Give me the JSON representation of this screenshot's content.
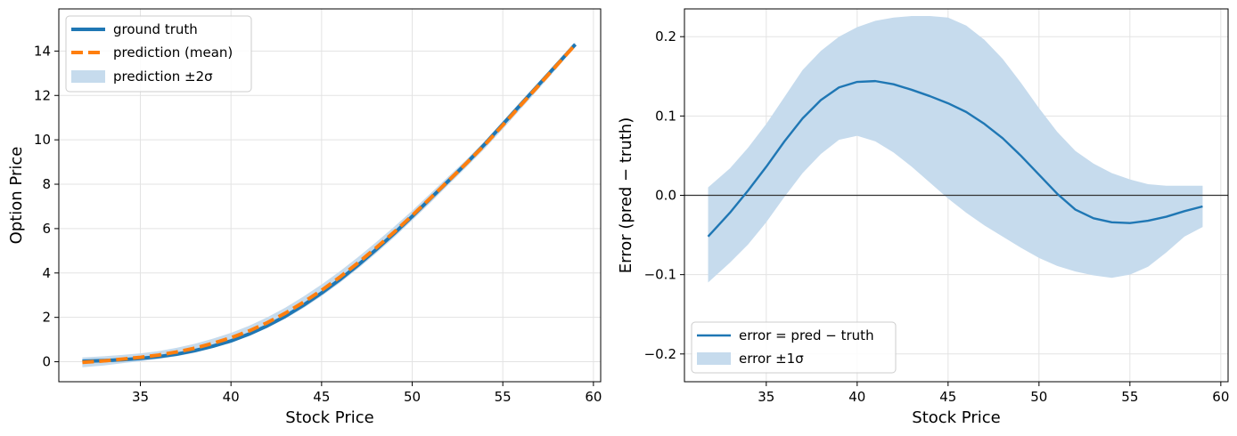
{
  "colors": {
    "truth": "#1f77b4",
    "prediction": "#ff7f0e",
    "band": "#c6dbed",
    "error": "#1f77b4",
    "zero_line": "#333333",
    "grid": "#e3e3e3"
  },
  "chart_data": [
    {
      "type": "line",
      "xlabel": "Stock Price",
      "ylabel": "Option Price",
      "xlim": [
        30.5,
        60.4
      ],
      "ylim": [
        -0.9,
        15.9
      ],
      "xticks": [
        35,
        40,
        45,
        50,
        55,
        60
      ],
      "yticks": [
        0,
        2,
        4,
        6,
        8,
        10,
        12,
        14
      ],
      "grid": true,
      "legend_position": "top-left",
      "legend": [
        "ground truth",
        "prediction (mean)",
        "prediction ±2σ"
      ],
      "x": [
        31.8,
        33,
        34,
        35,
        36,
        37,
        38,
        39,
        40,
        41,
        42,
        43,
        44,
        45,
        46,
        47,
        48,
        49,
        50,
        51,
        52,
        53,
        54,
        55,
        56,
        57,
        58,
        59
      ],
      "series": [
        {
          "name": "ground truth",
          "values": [
            0.02,
            0.05,
            0.09,
            0.15,
            0.23,
            0.34,
            0.5,
            0.7,
            0.94,
            1.25,
            1.62,
            2.05,
            2.55,
            3.1,
            3.7,
            4.35,
            5.05,
            5.78,
            6.55,
            7.35,
            8.15,
            8.95,
            9.8,
            10.7,
            11.6,
            12.5,
            13.4,
            14.3
          ]
        },
        {
          "name": "prediction (mean)",
          "values": [
            -0.03,
            0.04,
            0.12,
            0.2,
            0.3,
            0.44,
            0.61,
            0.83,
            1.08,
            1.39,
            1.76,
            2.19,
            2.68,
            3.22,
            3.81,
            4.45,
            5.13,
            5.84,
            6.59,
            7.37,
            8.16,
            8.95,
            9.77,
            10.66,
            11.57,
            12.47,
            13.38,
            14.29
          ]
        }
      ],
      "band": {
        "name": "prediction ±2σ",
        "lower": [
          -0.25,
          -0.17,
          -0.07,
          0.02,
          0.12,
          0.25,
          0.41,
          0.62,
          0.86,
          1.16,
          1.52,
          1.94,
          2.42,
          2.96,
          3.55,
          4.19,
          4.88,
          5.6,
          6.37,
          7.16,
          7.97,
          8.78,
          9.6,
          10.48,
          11.4,
          12.31,
          13.24,
          14.2
        ],
        "upper": [
          0.19,
          0.25,
          0.31,
          0.38,
          0.48,
          0.63,
          0.81,
          1.04,
          1.3,
          1.62,
          2.0,
          2.44,
          2.94,
          3.48,
          4.07,
          4.71,
          5.38,
          6.08,
          6.81,
          7.58,
          8.35,
          9.12,
          9.94,
          10.84,
          11.74,
          12.63,
          13.52,
          14.38
        ]
      }
    },
    {
      "type": "line",
      "xlabel": "Stock Price",
      "ylabel": "Error (pred − truth)",
      "xlim": [
        30.5,
        60.4
      ],
      "ylim": [
        -0.235,
        0.235
      ],
      "xticks": [
        35,
        40,
        45,
        50,
        55,
        60
      ],
      "yticks": [
        -0.2,
        -0.1,
        0.0,
        0.1,
        0.2
      ],
      "ytick_labels": [
        "−0.2",
        "−0.1",
        "0.0",
        "0.1",
        "0.2"
      ],
      "grid": true,
      "reference_line_y": 0,
      "legend_position": "bottom-left",
      "legend": [
        "error = pred − truth",
        "error ±1σ"
      ],
      "x": [
        31.8,
        33,
        34,
        35,
        36,
        37,
        38,
        39,
        40,
        41,
        42,
        43,
        44,
        45,
        46,
        47,
        48,
        49,
        50,
        51,
        52,
        53,
        54,
        55,
        56,
        57,
        58,
        59
      ],
      "series": [
        {
          "name": "error = pred − truth",
          "values": [
            -0.052,
            -0.022,
            0.006,
            0.036,
            0.068,
            0.097,
            0.12,
            0.136,
            0.143,
            0.144,
            0.14,
            0.133,
            0.125,
            0.116,
            0.105,
            0.09,
            0.072,
            0.05,
            0.026,
            0.002,
            -0.018,
            -0.029,
            -0.034,
            -0.035,
            -0.032,
            -0.027,
            -0.02,
            -0.014
          ]
        }
      ],
      "band": {
        "name": "error ±1σ",
        "lower": [
          -0.11,
          -0.085,
          -0.062,
          -0.034,
          -0.002,
          0.028,
          0.052,
          0.07,
          0.075,
          0.068,
          0.054,
          0.036,
          0.016,
          -0.004,
          -0.022,
          -0.038,
          -0.052,
          -0.066,
          -0.079,
          -0.089,
          -0.096,
          -0.101,
          -0.104,
          -0.1,
          -0.09,
          -0.072,
          -0.052,
          -0.04
        ],
        "upper": [
          0.01,
          0.034,
          0.06,
          0.09,
          0.124,
          0.158,
          0.182,
          0.2,
          0.212,
          0.22,
          0.224,
          0.226,
          0.226,
          0.224,
          0.214,
          0.196,
          0.172,
          0.142,
          0.11,
          0.08,
          0.056,
          0.04,
          0.028,
          0.02,
          0.014,
          0.012,
          0.012,
          0.012
        ]
      }
    }
  ]
}
